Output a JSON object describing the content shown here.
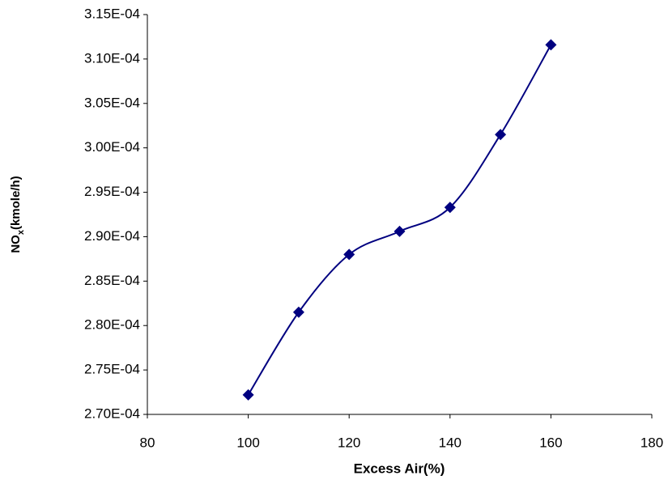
{
  "chart_data": {
    "type": "line",
    "xlabel": "Excess Air(%)",
    "ylabel_parts": [
      "NO",
      "x",
      "(kmole/h)"
    ],
    "x": [
      100,
      110,
      120,
      130,
      140,
      150,
      160
    ],
    "values": [
      0.0002722,
      0.0002815,
      0.000288,
      0.0002906,
      0.0002933,
      0.0003015,
      0.0003116
    ],
    "color": "#000080",
    "smooth": true,
    "xlim": [
      80,
      180
    ],
    "xticks": [
      80,
      100,
      120,
      140,
      160,
      180
    ],
    "ylim": [
      0.00027,
      0.000315
    ],
    "yticks": [
      {
        "value": 0.00027,
        "label": "2.70E-04"
      },
      {
        "value": 0.000275,
        "label": "2.75E-04"
      },
      {
        "value": 0.00028,
        "label": "2.80E-04"
      },
      {
        "value": 0.000285,
        "label": "2.85E-04"
      },
      {
        "value": 0.00029,
        "label": "2.90E-04"
      },
      {
        "value": 0.000295,
        "label": "2.95E-04"
      },
      {
        "value": 0.0003,
        "label": "3.00E-04"
      },
      {
        "value": 0.000305,
        "label": "3.05E-04"
      },
      {
        "value": 0.00031,
        "label": "3.10E-04"
      },
      {
        "value": 0.000315,
        "label": "3.15E-04"
      }
    ]
  }
}
